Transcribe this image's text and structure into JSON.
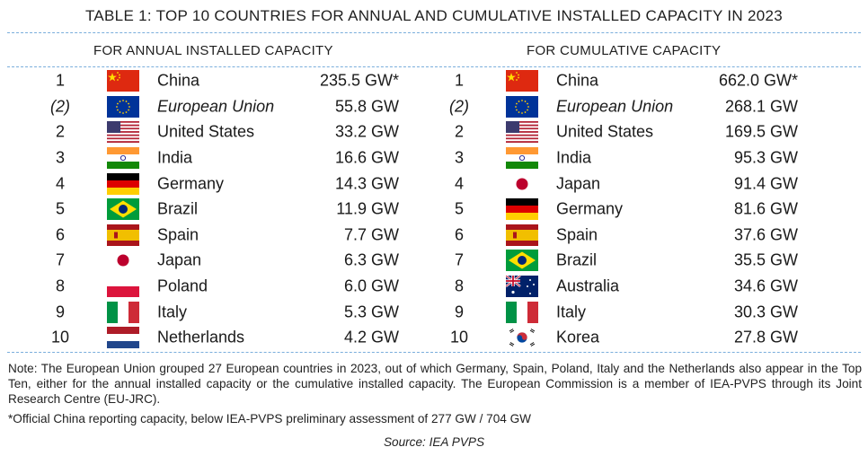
{
  "title": "TABLE 1: TOP 10 COUNTRIES FOR ANNUAL AND CUMULATIVE INSTALLED CAPACITY IN 2023",
  "annual": {
    "heading": "FOR ANNUAL INSTALLED CAPACITY",
    "rows": [
      {
        "rank": "1",
        "country": "China",
        "value": "235.5 GW*",
        "flag": "china-flag",
        "italic": false
      },
      {
        "rank": "(2)",
        "country": "European Union",
        "value": "55.8 GW",
        "flag": "eu-flag",
        "italic": true
      },
      {
        "rank": "2",
        "country": "United States",
        "value": "33.2 GW",
        "flag": "us-flag",
        "italic": false
      },
      {
        "rank": "3",
        "country": "India",
        "value": "16.6 GW",
        "flag": "india-flag",
        "italic": false
      },
      {
        "rank": "4",
        "country": "Germany",
        "value": "14.3 GW",
        "flag": "germany-flag",
        "italic": false
      },
      {
        "rank": "5",
        "country": "Brazil",
        "value": "11.9 GW",
        "flag": "brazil-flag",
        "italic": false
      },
      {
        "rank": "6",
        "country": "Spain",
        "value": "7.7 GW",
        "flag": "spain-flag",
        "italic": false
      },
      {
        "rank": "7",
        "country": "Japan",
        "value": "6.3 GW",
        "flag": "japan-flag",
        "italic": false
      },
      {
        "rank": "8",
        "country": "Poland",
        "value": "6.0 GW",
        "flag": "poland-flag",
        "italic": false
      },
      {
        "rank": "9",
        "country": "Italy",
        "value": "5.3 GW",
        "flag": "italy-flag",
        "italic": false
      },
      {
        "rank": "10",
        "country": "Netherlands",
        "value": "4.2 GW",
        "flag": "netherlands-flag",
        "italic": false
      }
    ]
  },
  "cumulative": {
    "heading": "FOR CUMULATIVE CAPACITY",
    "rows": [
      {
        "rank": "1",
        "country": "China",
        "value": "662.0 GW*",
        "flag": "china-flag",
        "italic": false
      },
      {
        "rank": "(2)",
        "country": "European Union",
        "value": "268.1 GW",
        "flag": "eu-flag",
        "italic": true
      },
      {
        "rank": "2",
        "country": "United States",
        "value": "169.5 GW",
        "flag": "us-flag",
        "italic": false
      },
      {
        "rank": "3",
        "country": "India",
        "value": "95.3 GW",
        "flag": "india-flag",
        "italic": false
      },
      {
        "rank": "4",
        "country": "Japan",
        "value": "91.4 GW",
        "flag": "japan-flag",
        "italic": false
      },
      {
        "rank": "5",
        "country": "Germany",
        "value": "81.6 GW",
        "flag": "germany-flag",
        "italic": false
      },
      {
        "rank": "6",
        "country": "Spain",
        "value": "37.6 GW",
        "flag": "spain-flag",
        "italic": false
      },
      {
        "rank": "7",
        "country": "Brazil",
        "value": "35.5 GW",
        "flag": "brazil-flag",
        "italic": false
      },
      {
        "rank": "8",
        "country": "Australia",
        "value": "34.6 GW",
        "flag": "australia-flag",
        "italic": false
      },
      {
        "rank": "9",
        "country": "Italy",
        "value": "30.3 GW",
        "flag": "italy-flag",
        "italic": false
      },
      {
        "rank": "10",
        "country": "Korea",
        "value": "27.8 GW",
        "flag": "korea-flag",
        "italic": false
      }
    ]
  },
  "note": "Note: The European Union grouped 27 European countries in 2023, out of which Germany, Spain, Poland, Italy and the Netherlands also appear in the Top Ten, either for the annual installed capacity or the cumulative installed capacity. The European Commission is a member of IEA-PVPS through its Joint Research Centre (EU-JRC).",
  "footnote": "*Official China reporting capacity, below IEA-PVPS preliminary assessment of 277 GW / 704 GW",
  "source": "Source: IEA PVPS",
  "colors": {
    "rule": "#7aaedc",
    "text": "#1a1a1a"
  }
}
